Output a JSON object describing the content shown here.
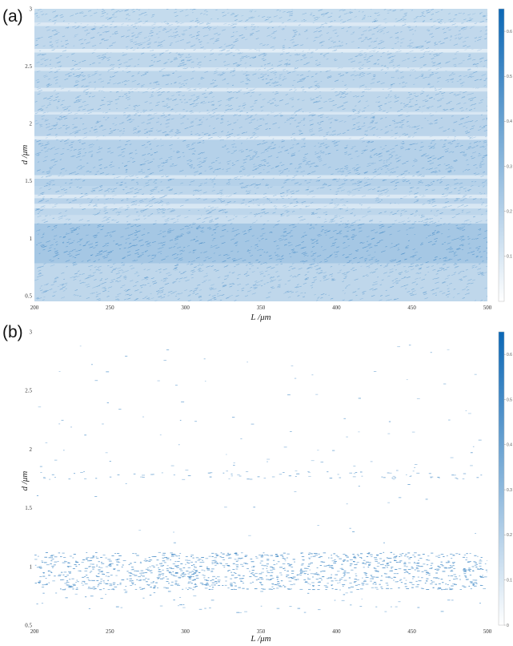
{
  "chart_data": [
    {
      "type": "heatmap",
      "panel": "(a)",
      "xlabel": "L  /μm",
      "ylabel": "d  /μm",
      "xlim": [
        200,
        500
      ],
      "ylim": [
        0.45,
        3
      ],
      "xticks": [
        "200",
        "250",
        "300",
        "350",
        "400",
        "450",
        "500"
      ],
      "yticks": [
        "0.5",
        "1",
        "1.5",
        "2",
        "2.5",
        "3"
      ],
      "colorbar": {
        "range": [
          0,
          0.65
        ],
        "ticks": [
          "0.1",
          "0.2",
          "0.3",
          "0.4",
          "0.5",
          "0.6"
        ]
      },
      "colormap": [
        "#ffffff",
        "#0b67b5"
      ],
      "density": "dense",
      "bands": [
        {
          "y0": 0.45,
          "y1": 0.78,
          "level": 0.33
        },
        {
          "y0": 0.78,
          "y1": 1.13,
          "level": 0.46
        },
        {
          "y0": 1.13,
          "y1": 1.2,
          "level": 0.27
        },
        {
          "y0": 1.2,
          "y1": 1.26,
          "level": 0.34
        },
        {
          "y0": 1.26,
          "y1": 1.3,
          "level": 0.2
        },
        {
          "y0": 1.3,
          "y1": 1.35,
          "level": 0.36
        },
        {
          "y0": 1.35,
          "y1": 1.38,
          "level": 0.18
        },
        {
          "y0": 1.38,
          "y1": 1.45,
          "level": 0.34
        },
        {
          "y0": 1.45,
          "y1": 1.52,
          "level": 0.38
        },
        {
          "y0": 1.52,
          "y1": 1.55,
          "level": 0.2
        },
        {
          "y0": 1.55,
          "y1": 1.86,
          "level": 0.38
        },
        {
          "y0": 1.86,
          "y1": 1.89,
          "level": 0.16
        },
        {
          "y0": 1.89,
          "y1": 2.08,
          "level": 0.35
        },
        {
          "y0": 2.08,
          "y1": 2.1,
          "level": 0.2
        },
        {
          "y0": 2.1,
          "y1": 2.28,
          "level": 0.33
        },
        {
          "y0": 2.28,
          "y1": 2.31,
          "level": 0.18
        },
        {
          "y0": 2.31,
          "y1": 2.46,
          "level": 0.34
        },
        {
          "y0": 2.46,
          "y1": 2.49,
          "level": 0.2
        },
        {
          "y0": 2.49,
          "y1": 2.62,
          "level": 0.33
        },
        {
          "y0": 2.62,
          "y1": 2.65,
          "level": 0.15
        },
        {
          "y0": 2.65,
          "y1": 2.85,
          "level": 0.32
        },
        {
          "y0": 2.85,
          "y1": 2.88,
          "level": 0.18
        },
        {
          "y0": 2.88,
          "y1": 3.0,
          "level": 0.3
        }
      ]
    },
    {
      "type": "heatmap",
      "panel": "(b)",
      "xlabel": "L  /μm",
      "ylabel": "d  /μm",
      "xlim": [
        200,
        500
      ],
      "ylim": [
        0.5,
        3
      ],
      "xticks": [
        "200",
        "250",
        "300",
        "350",
        "400",
        "450",
        "500"
      ],
      "yticks": [
        "0.5",
        "1",
        "1.5",
        "2",
        "2.5",
        "3"
      ],
      "colorbar": {
        "range": [
          0,
          0.65
        ],
        "ticks": [
          "0",
          "0.1",
          "0.2",
          "0.3",
          "0.4",
          "0.5",
          "0.6"
        ]
      },
      "colormap": [
        "#ffffff",
        "#0b67b5"
      ],
      "density": "sparse",
      "bands": [
        {
          "y0": 0.8,
          "y1": 1.12,
          "level": 0.45,
          "count": 1300
        },
        {
          "y0": 0.6,
          "y1": 0.8,
          "level": 0.35,
          "count": 60
        },
        {
          "y0": 1.74,
          "y1": 1.82,
          "level": 0.35,
          "count": 80
        },
        {
          "y0": 1.2,
          "y1": 2.9,
          "level": 0.3,
          "count": 110
        }
      ]
    }
  ],
  "colors": {
    "accent": "#2a7fc4",
    "background": "#ffffff"
  }
}
